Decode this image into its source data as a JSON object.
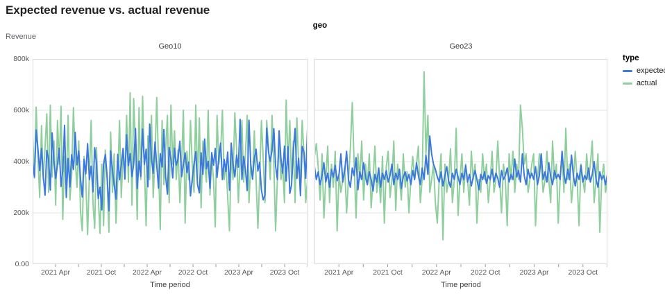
{
  "chart_data": {
    "type": "line",
    "title": "Expected revenue vs. actual revenue",
    "facet_field": "geo",
    "x": {
      "label": "Time period",
      "start": "2021-01",
      "end": "2023-12",
      "interval": "weekly",
      "months_total": 36,
      "ticks": [
        {
          "m": 3,
          "label": "2021 Apr"
        },
        {
          "m": 6,
          "label": ""
        },
        {
          "m": 9,
          "label": "2021 Oct"
        },
        {
          "m": 12,
          "label": ""
        },
        {
          "m": 15,
          "label": "2022 Apr"
        },
        {
          "m": 18,
          "label": ""
        },
        {
          "m": 21,
          "label": "2022 Oct"
        },
        {
          "m": 24,
          "label": ""
        },
        {
          "m": 27,
          "label": "2023 Apr"
        },
        {
          "m": 30,
          "label": ""
        },
        {
          "m": 33,
          "label": "2023 Oct"
        },
        {
          "m": 36,
          "label": ""
        }
      ]
    },
    "y": {
      "label": "Revenue",
      "unit": "thousands",
      "min": 0,
      "max_k": 800,
      "gridlines_k": [
        200,
        400,
        600
      ],
      "tick_labels": [
        "800k",
        "600k",
        "400k",
        "200k",
        "0.00"
      ]
    },
    "legend": {
      "title": "type",
      "items": [
        {
          "label": "expected",
          "color": "#3b79de"
        },
        {
          "label": "actual",
          "color": "#8ecf9d"
        }
      ]
    },
    "facets": [
      {
        "name": "Geo10",
        "series": [
          {
            "name": "expected",
            "values_k": [
              400,
              340,
              523,
              449,
              365,
              451,
              343,
              269,
              444,
              408,
              289,
              512,
              402,
              334,
              387,
              452,
              303,
              363,
              541,
              260,
              412,
              301,
              427,
              369,
              514,
              387,
              441,
              332,
              262,
              409,
              352,
              470,
              330,
              382,
              282,
              454,
              390,
              256,
              300,
              212,
              390,
              427,
              345,
              208,
              442,
              366,
              309,
              254,
              428,
              329,
              386,
              451,
              332,
              505,
              384,
              431,
              341,
              390,
              529,
              295,
              402,
              342,
              527,
              389,
              448,
              302,
              546,
              410,
              354,
              476,
              385,
              297,
              431,
              379,
              525,
              341,
              273,
              455,
              410,
              336,
              452,
              386,
              411,
              479,
              341,
              390,
              434,
              357,
              398,
              266,
              330,
              391,
              438,
              310,
              278,
              434,
              350,
              488,
              372,
              401,
              296,
              435,
              386,
              451,
              338,
              418,
              472,
              330,
              409,
              361,
              437,
              288,
              472,
              390,
              340,
              425,
              378,
              564,
              330,
              420,
              368,
              287,
              561,
              390,
              332,
              414,
              448,
              363,
              397,
              289,
              251,
              269,
              530,
              437,
              401,
              444,
              528,
              383,
              330,
              520,
              412,
              355,
              460,
              324,
              458,
              276,
              309,
              442,
              529,
              334,
              413,
              267,
              459,
              437,
              335,
              528
            ]
          },
          {
            "name": "actual",
            "values_k": [
              500,
              336,
              612,
              415,
              260,
              540,
              330,
              455,
              586,
              280,
              620,
              340,
              480,
              230,
              560,
              390,
              615,
              175,
              420,
              305,
              580,
              250,
              345,
              610,
              410,
              300,
              480,
              205,
              130,
              420,
              330,
              115,
              350,
              560,
              240,
              140,
              455,
              265,
              120,
              390,
              150,
              445,
              330,
              125,
              515,
              280,
              430,
              160,
              330,
              560,
              260,
              430,
              360,
              580,
              320,
              668,
              230,
              645,
              440,
              175,
              610,
              330,
              655,
              380,
              150,
              500,
              330,
              580,
              260,
              420,
              650,
              390,
              135,
              560,
              310,
              450,
              580,
              240,
              620,
              390,
              520,
              330,
              445,
              240,
              390,
              600,
              160,
              440,
              330,
              560,
              390,
              280,
              620,
              330,
              570,
              220,
              480,
              390,
              320,
              600,
              270,
              415,
              330,
              145,
              580,
              390,
              440,
              600,
              330,
              390,
              260,
              130,
              430,
              330,
              590,
              450,
              240,
              390,
              560,
              320,
              430,
              580,
              240,
              390,
              330,
              520,
              330,
              140,
              330,
              560,
              420,
              240,
              560,
              460,
              330,
              580,
              390,
              130,
              330,
              480,
              330,
              390,
              240,
              640,
              390,
              560,
              330,
              480,
              240,
              570,
              390,
              330,
              560,
              430,
              240,
              330
            ]
          }
        ]
      },
      {
        "name": "Geo23",
        "series": [
          {
            "name": "expected",
            "values_k": [
              380,
              330,
              360,
              310,
              345,
              395,
              320,
              355,
              300,
              370,
              340,
              385,
              325,
              350,
              430,
              320,
              365,
              440,
              330,
              300,
              375,
              345,
              415,
              290,
              360,
              330,
              395,
              340,
              310,
              360,
              330,
              285,
              350,
              320,
              375,
              300,
              355,
              330,
              365,
              320,
              345,
              390,
              310,
              355,
              330,
              370,
              295,
              340,
              360,
              325,
              350,
              310,
              365,
              330,
              395,
              345,
              310,
              375,
              330,
              425,
              350,
              500,
              430,
              390,
              370,
              340,
              320,
              360,
              305,
              345,
              380,
              325,
              300,
              355,
              330,
              370,
              340,
              310,
              355,
              330,
              385,
              320,
              350,
              305,
              340,
              365,
              330,
              290,
              350,
              330,
              360,
              315,
              345,
              330,
              370,
              320,
              355,
              335,
              300,
              365,
              330,
              345,
              375,
              320,
              350,
              330,
              410,
              340,
              365,
              320,
              430,
              345,
              310,
              370,
              335,
              355,
              330,
              380,
              310,
              345,
              430,
              330,
              360,
              320,
              395,
              340,
              310,
              365,
              335,
              350,
              330,
              440,
              350,
              315,
              370,
              330,
              425,
              345,
              305,
              355,
              330,
              385,
              320,
              345,
              330,
              375,
              320,
              350,
              400,
              330,
              300,
              360,
              330,
              345,
              310,
              350
            ]
          },
          {
            "name": "actual",
            "values_k": [
              420,
              470,
              380,
              250,
              430,
              180,
              330,
              460,
              240,
              390,
              300,
              440,
              130,
              350,
              280,
              330,
              380,
              200,
              330,
              450,
              630,
              390,
              180,
              430,
              330,
              480,
              250,
              390,
              310,
              430,
              220,
              330,
              460,
              280,
              350,
              240,
              420,
              160,
              380,
              440,
              260,
              330,
              480,
              210,
              390,
              330,
              250,
              430,
              300,
              360,
              200,
              330,
              420,
              330,
              390,
              460,
              240,
              330,
              750,
              430,
              580,
              280,
              330,
              390,
              240,
              160,
              330,
              430,
              95,
              390,
              280,
              330,
              450,
              240,
              330,
              530,
              190,
              330,
              430,
              280,
              390,
              330,
              230,
              440,
              330,
              390,
              160,
              330,
              280,
              430,
              330,
              390,
              240,
              330,
              440,
              280,
              330,
              480,
              330,
              200,
              390,
              330,
              150,
              430,
              330,
              440,
              280,
              390,
              330,
              620,
              530,
              390,
              430,
              280,
              330,
              390,
              430,
              150,
              330,
              430,
              390,
              280,
              330,
              440,
              330,
              240,
              480,
              330,
              390,
              160,
              330,
              430,
              280,
              530,
              330,
              390,
              240,
              330,
              440,
              330,
              150,
              390,
              330,
              280,
              430,
              330,
              390,
              480,
              240,
              330,
              430,
              125,
              330,
              390,
              280,
              330
            ]
          }
        ]
      }
    ],
    "style": {
      "grid_color": "#e5e5e5",
      "border_color": "#d9d9d9",
      "tick_color": "#9a9a9a",
      "tick_label_color": "#575757"
    }
  }
}
